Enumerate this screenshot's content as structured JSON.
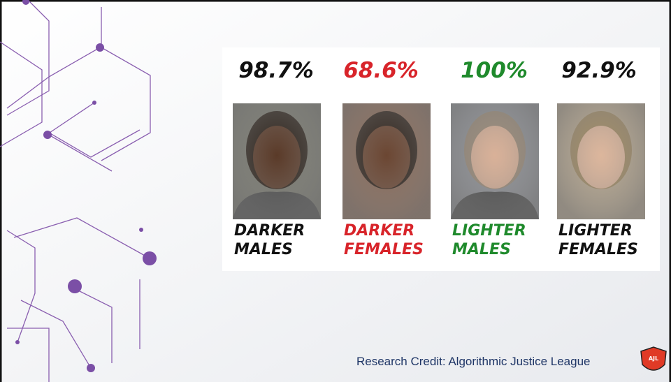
{
  "slide": {
    "items": [
      {
        "percent": "98.7%",
        "label_lines": [
          "DARKER",
          "MALES"
        ],
        "color": "#111111"
      },
      {
        "percent": "68.6%",
        "label_lines": [
          "DARKER",
          "FEMALES"
        ],
        "color": "#d8242a"
      },
      {
        "percent": "100%",
        "label_lines": [
          "LIGHTER",
          "MALES"
        ],
        "color": "#1f8a2c"
      },
      {
        "percent": "92.9%",
        "label_lines": [
          "LIGHTER",
          "FEMALES"
        ],
        "color": "#111111"
      }
    ],
    "credit": "Research Credit: Algorithmic Justice League",
    "logo": "AJL"
  }
}
